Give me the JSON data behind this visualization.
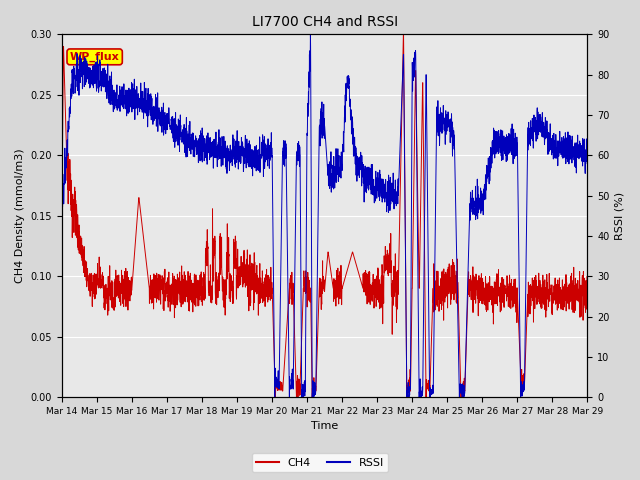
{
  "title": "LI7700 CH4 and RSSI",
  "xlabel": "Time",
  "ylabel_left": "CH4 Density (mmol/m3)",
  "ylabel_right": "RSSI (%)",
  "ylim_left": [
    0.0,
    0.3
  ],
  "ylim_right": [
    0,
    90
  ],
  "yticks_left": [
    0.0,
    0.05,
    0.1,
    0.15,
    0.2,
    0.25,
    0.3
  ],
  "yticks_right": [
    0,
    10,
    20,
    30,
    40,
    50,
    60,
    70,
    80,
    90
  ],
  "color_ch4": "#cc0000",
  "color_rssi": "#0000bb",
  "bg_color": "#d8d8d8",
  "plot_bg_color": "#e8e8e8",
  "annotation_text": "WP_flux",
  "annotation_fg": "#cc0000",
  "annotation_bg": "#ffff00",
  "xtick_labels": [
    "Mar 14",
    "Mar 15",
    "Mar 16",
    "Mar 17",
    "Mar 18",
    "Mar 19",
    "Mar 20",
    "Mar 21",
    "Mar 22",
    "Mar 23",
    "Mar 24",
    "Mar 25",
    "Mar 26",
    "Mar 27",
    "Mar 28",
    "Mar 29"
  ],
  "legend_ch4": "CH4",
  "legend_rssi": "RSSI",
  "figsize": [
    6.4,
    4.8
  ],
  "dpi": 100
}
